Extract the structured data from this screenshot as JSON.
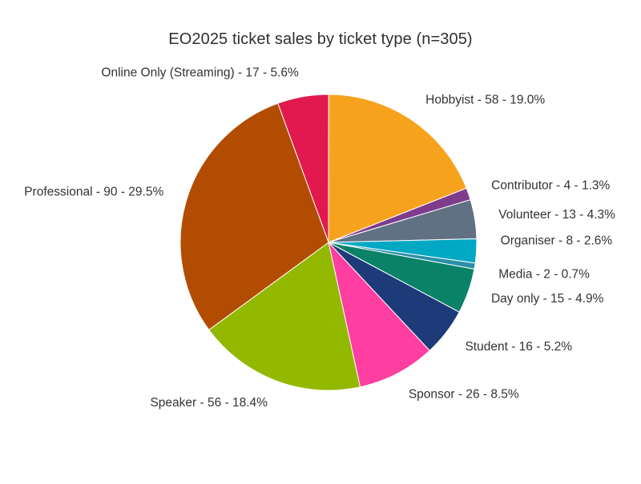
{
  "chart_data": {
    "type": "pie",
    "title": "EO2025 ticket sales by ticket type (n=305)",
    "total": 305,
    "slices": [
      {
        "label": "Online Only (Streaming) - 17 - 5.6%",
        "name": "Online Only (Streaming)",
        "value": 17,
        "percent": 5.6,
        "color": "#E2194E"
      },
      {
        "label": "Hobbyist - 58 - 19.0%",
        "name": "Hobbyist",
        "value": 58,
        "percent": 19.0,
        "color": "#F6A21D"
      },
      {
        "label": "Contributor - 4 - 1.3%",
        "name": "Contributor",
        "value": 4,
        "percent": 1.3,
        "color": "#7F3C8D"
      },
      {
        "label": "Volunteer - 13 - 4.3%",
        "name": "Volunteer",
        "value": 13,
        "percent": 4.3,
        "color": "#607183"
      },
      {
        "label": "Organiser - 8 - 2.6%",
        "name": "Organiser",
        "value": 8,
        "percent": 2.6,
        "color": "#00A8C4"
      },
      {
        "label": "Media - 2 - 0.7%",
        "name": "Media",
        "value": 2,
        "percent": 0.7,
        "color": "#2A8FA8"
      },
      {
        "label": "Day only - 15 - 4.9%",
        "name": "Day only",
        "value": 15,
        "percent": 4.9,
        "color": "#0A8268"
      },
      {
        "label": "Student - 16 - 5.2%",
        "name": "Student",
        "value": 16,
        "percent": 5.2,
        "color": "#1D3A79"
      },
      {
        "label": "Sponsor - 26 - 8.5%",
        "name": "Sponsor",
        "value": 26,
        "percent": 8.5,
        "color": "#FF3EA1"
      },
      {
        "label": "Speaker - 56 - 18.4%",
        "name": "Speaker",
        "value": 56,
        "percent": 18.4,
        "color": "#93B800"
      },
      {
        "label": "Professional - 90 - 29.5%",
        "name": "Professional",
        "value": 90,
        "percent": 29.5,
        "color": "#B24C00"
      }
    ]
  }
}
